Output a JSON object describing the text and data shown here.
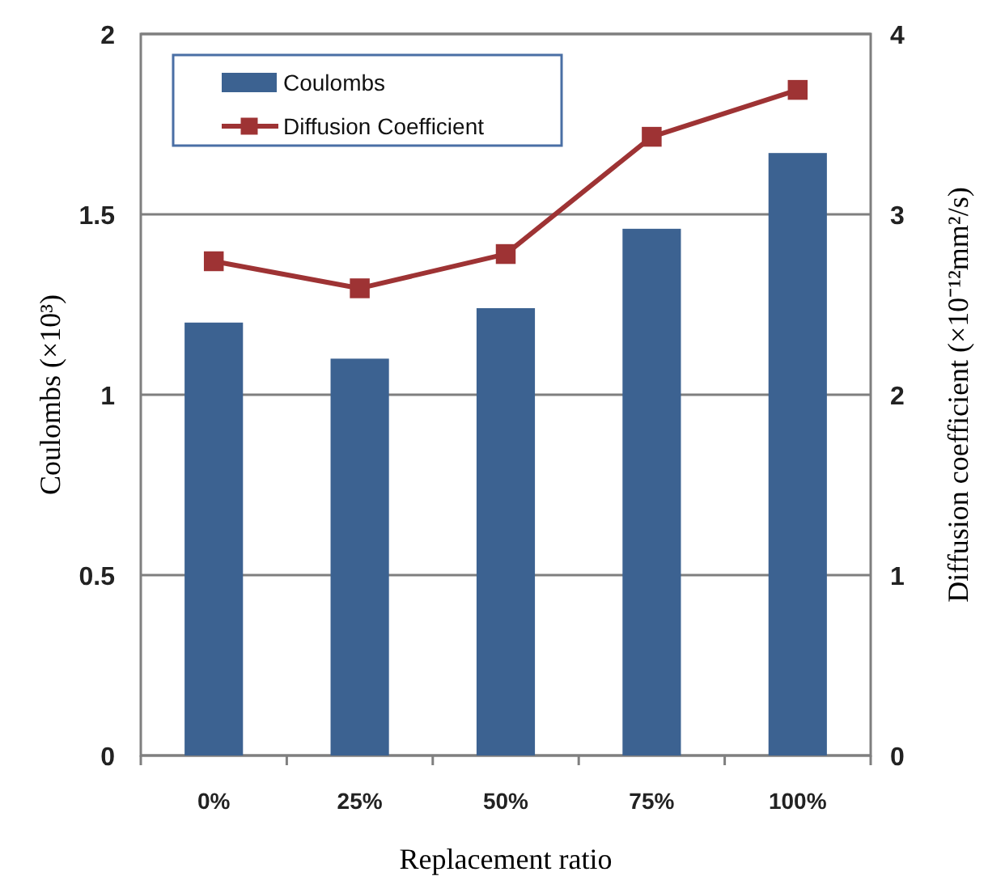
{
  "chart_data": {
    "type": "bar",
    "xlabel": "Replacement ratio",
    "ylabel": "Coulombs (×10³)",
    "y2label": "Diffusion coefficient (×10⁻¹²mm²/s)",
    "categories": [
      "0%",
      "25%",
      "50%",
      "75%",
      "100%"
    ],
    "series": [
      {
        "name": "Coulombs",
        "color": "#3c6291",
        "values": [
          1.2,
          1.1,
          1.24,
          1.46,
          1.67
        ]
      },
      {
        "name": "Diffusion Coefficient",
        "type": "line",
        "axis": "y2",
        "color": "#9e3334",
        "marker": "square",
        "values": [
          2.74,
          2.59,
          2.78,
          3.43,
          3.69
        ]
      }
    ],
    "ylim": [
      0,
      2
    ],
    "yticks": [
      0,
      0.5,
      1,
      1.5,
      2
    ],
    "y2lim": [
      0,
      4
    ],
    "y2ticks": [
      0,
      1,
      2,
      3,
      4
    ],
    "grid": "y",
    "legend": "top left"
  }
}
